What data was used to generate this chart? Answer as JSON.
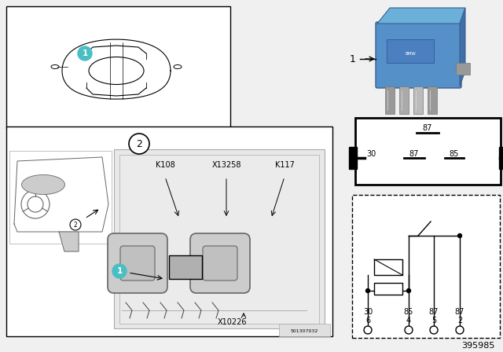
{
  "bg_color": "#f0f0f0",
  "white": "#ffffff",
  "black": "#000000",
  "teal": "#4bbec3",
  "relay_blue_top": "#6ab0d8",
  "relay_blue_main": "#5590c8",
  "relay_blue_dark": "#3a6090",
  "gray_light": "#cccccc",
  "gray_mid": "#aaaaaa",
  "gray_dark": "#666666",
  "gray_box": "#d8d8d8",
  "part_number": "395985",
  "diagram_code": "501307032",
  "labels_top": [
    "K108",
    "X13258",
    "K117"
  ],
  "label_bottom": "X10226",
  "pin_row1": [
    "6",
    "4",
    "5",
    "2"
  ],
  "pin_row2": [
    "30",
    "85",
    "87",
    "87"
  ],
  "socket_top_label": "87",
  "socket_mid_labels": [
    "30",
    "87",
    "85"
  ]
}
